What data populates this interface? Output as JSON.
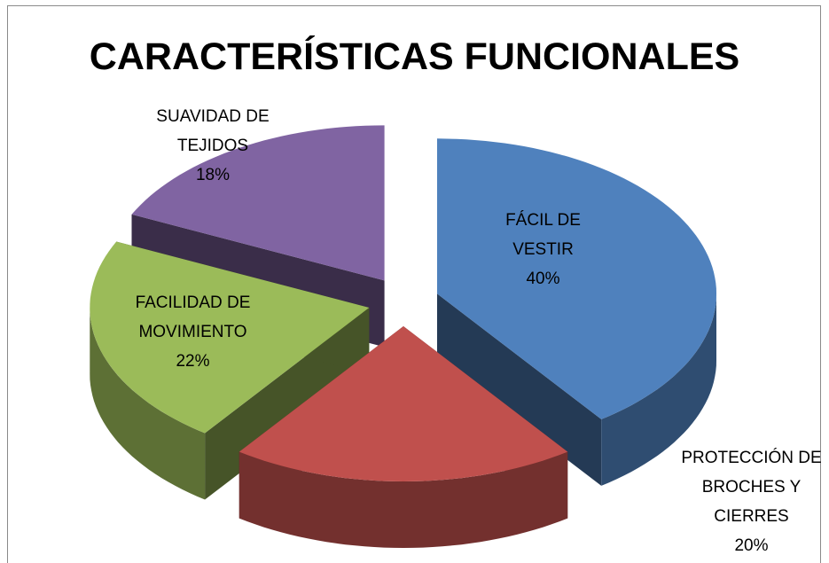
{
  "chart_data": {
    "type": "pie",
    "title": "CARACTERÍSTICAS FUNCIONALES",
    "categories": [
      "FÁCIL DE VESTIR",
      "PROTECCIÓN DE BROCHES Y CIERRES",
      "FACILIDAD DE MOVIMIENTO",
      "SUAVIDAD DE TEJIDOS"
    ],
    "values": [
      40,
      20,
      22,
      18
    ],
    "value_labels": [
      "40%",
      "20%",
      "22%",
      "18%"
    ],
    "colors": [
      "#4f81bd",
      "#c0504d",
      "#9bbb59",
      "#8064a2"
    ]
  }
}
